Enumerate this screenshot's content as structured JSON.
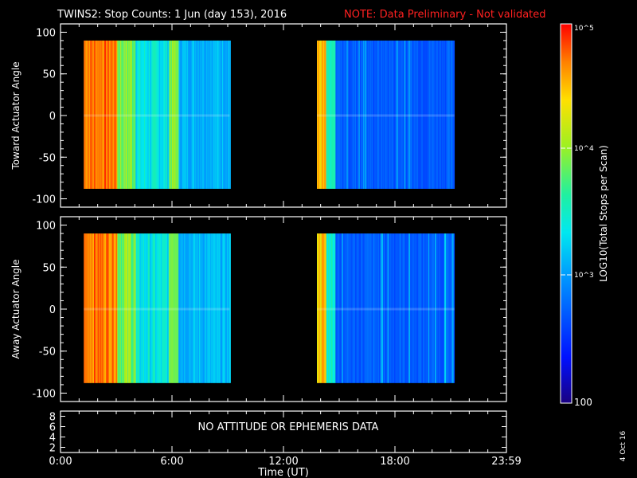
{
  "header": {
    "title": "TWINS2: Stop Counts:  1 Jun (day 153), 2016",
    "note": "NOTE: Data Preliminary - Not validated"
  },
  "panels": {
    "toward": {
      "ylabel": "Toward Actuator Angle"
    },
    "away": {
      "ylabel": "Away Actuator Angle"
    },
    "ephem": {
      "message": "NO ATTITUDE OR EPHEMERIS DATA"
    }
  },
  "xaxis": {
    "label": "Time (UT)",
    "ticks": [
      "0:00",
      "6:00",
      "12:00",
      "18:00",
      "23:59"
    ]
  },
  "colorbar": {
    "label": "LOG10(Total Stops per Scan)",
    "tick_labels": [
      "10^5",
      "10^4",
      "10^3",
      "100"
    ]
  },
  "footer": {
    "date_stamp": "4 Oct 16"
  },
  "chart_data": [
    {
      "type": "heatmap",
      "name": "toward",
      "ylabel": "Toward Actuator Angle",
      "xlim": [
        0,
        24
      ],
      "ylim": [
        -110,
        110
      ],
      "yticks": [
        100,
        50,
        0,
        -50,
        -100
      ],
      "data_intervals_hours": [
        [
          1.25,
          9.1
        ],
        [
          13.8,
          21.2
        ]
      ],
      "angle_range": [
        -88,
        90
      ],
      "log_scale": true,
      "zlim": [
        100,
        100000
      ]
    },
    {
      "type": "heatmap",
      "name": "away",
      "ylabel": "Away Actuator Angle",
      "xlim": [
        0,
        24
      ],
      "ylim": [
        -110,
        110
      ],
      "yticks": [
        100,
        50,
        0,
        -50,
        -100
      ],
      "data_intervals_hours": [
        [
          1.25,
          9.1
        ],
        [
          13.8,
          21.2
        ]
      ],
      "angle_range": [
        -88,
        90
      ],
      "log_scale": true,
      "zlim": [
        100,
        100000
      ]
    },
    {
      "type": "line",
      "name": "ephemeris",
      "ylim": [
        1,
        9
      ],
      "yticks": [
        8,
        6,
        4,
        2
      ],
      "xticks": [
        "0:00",
        "6:00",
        "12:00",
        "18:00",
        "23:59"
      ]
    }
  ]
}
